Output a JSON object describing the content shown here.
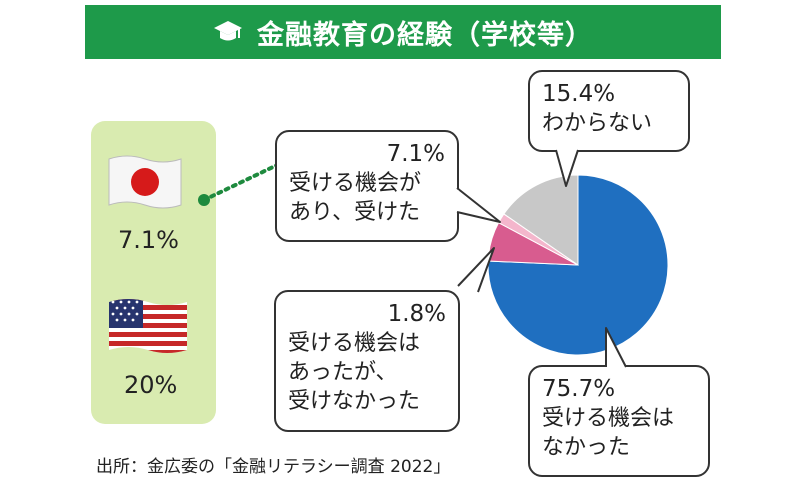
{
  "title": "金融教育の経験（学校等）",
  "source": "出所：金広委の「金融リテラシー調査 2022」",
  "comparison": {
    "japan": {
      "value": "7.1%",
      "flag_icon": "japan-flag-icon"
    },
    "usa": {
      "value": "20%",
      "flag_icon": "us-flag-icon"
    }
  },
  "chart_data": {
    "type": "pie",
    "unit": "%",
    "slices": [
      {
        "label": "受ける機会はなかった",
        "value": 75.7,
        "color": "#1f6fc0"
      },
      {
        "label": "受ける機会があり、受けた",
        "value": 7.1,
        "color": "#d85c8f"
      },
      {
        "label": "受ける機会はあったが、受けなかった",
        "value": 1.8,
        "color": "#f4b6cc"
      },
      {
        "label": "わからない",
        "value": 15.4,
        "color": "#c8c8c8"
      }
    ]
  },
  "callouts": {
    "dont_know": {
      "value": "15.4%",
      "text": "わからない"
    },
    "took": {
      "value": "7.1%",
      "text": "受ける機会が\nあり、受けた"
    },
    "not_taken": {
      "value": "1.8%",
      "text": "受ける機会は\nあったが、\n受けなかった"
    },
    "no_chance": {
      "value": "75.7%",
      "text": "受ける機会は\nなかった"
    }
  },
  "colors": {
    "title_bg": "#1e9a4a",
    "panel_bg": "#d9ebb0",
    "dotted_line": "#1e8a3e"
  }
}
